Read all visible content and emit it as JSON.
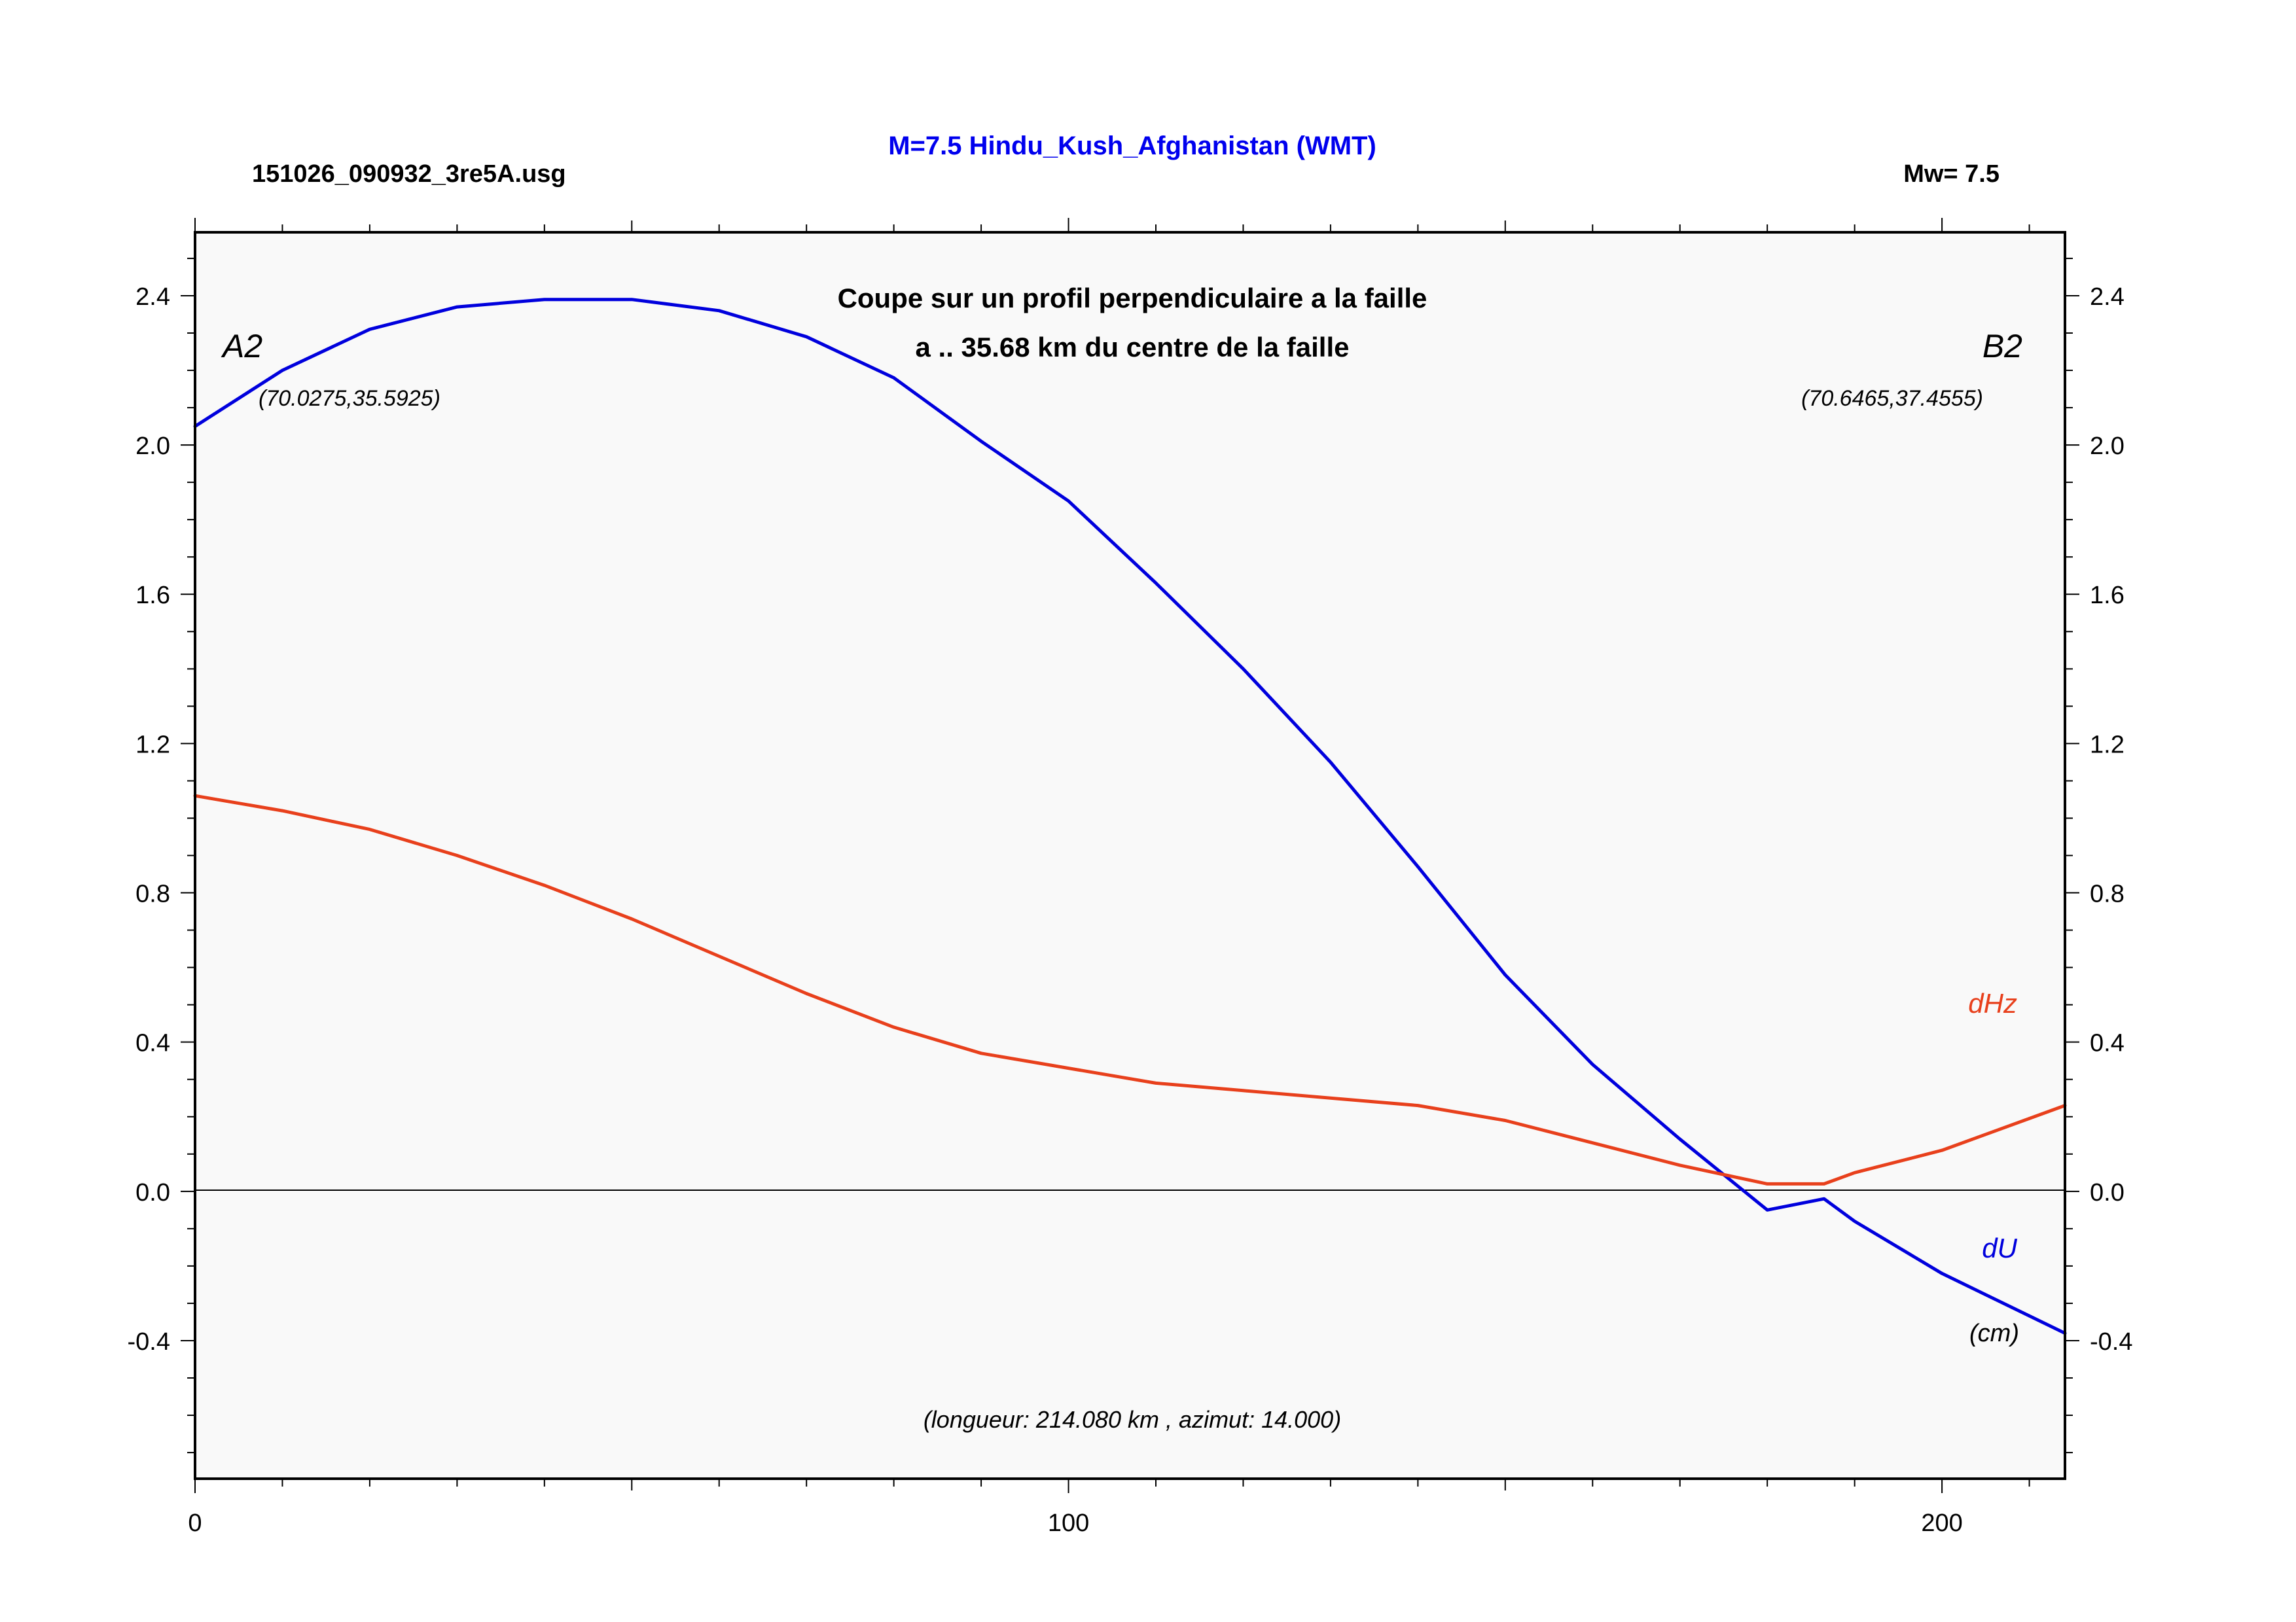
{
  "header": {
    "filename": "151026_090932_3re5A.usg",
    "title": "M=7.5 Hindu_Kush_Afghanistan (WMT)",
    "magnitude": "Mw= 7.5"
  },
  "annotations": {
    "subtitle_line1": "Coupe sur un profil perpendiculaire a la faille",
    "subtitle_line2": "a .. 35.68 km du centre de la faille",
    "point_a_label": "A2",
    "point_a_coords": "(70.0275,35.5925)",
    "point_b_label": "B2",
    "point_b_coords": "(70.6465,37.4555)",
    "profile_info": "(longueur: 214.080 km , azimut: 14.000)",
    "unit": "(cm)"
  },
  "colors": {
    "title": "#0000ee",
    "du": "#0000dd",
    "dhz": "#e8401c",
    "plot_background": "#f9f9f9",
    "frame": "#000000"
  },
  "chart_data": {
    "type": "line",
    "x": [
      0,
      10,
      20,
      30,
      40,
      50,
      60,
      70,
      80,
      90,
      100,
      110,
      120,
      130,
      140,
      150,
      160,
      170,
      180,
      186.5,
      190,
      200,
      214.08
    ],
    "xlim": [
      0,
      214.08
    ],
    "ylim": [
      -0.77,
      2.57
    ],
    "x_ticks": [
      "0",
      "100",
      "200"
    ],
    "y_ticks": [
      "-0.4",
      "0.0",
      "0.4",
      "0.8",
      "1.2",
      "1.6",
      "2.0",
      "2.4"
    ],
    "grid": false,
    "zero_line": true,
    "series": [
      {
        "name": "dU",
        "color": "#0000dd",
        "values": [
          2.05,
          2.2,
          2.31,
          2.37,
          2.39,
          2.39,
          2.36,
          2.29,
          2.18,
          2.01,
          1.85,
          1.63,
          1.4,
          1.15,
          0.87,
          0.58,
          0.34,
          0.14,
          -0.05,
          -0.02,
          -0.08,
          -0.22,
          -0.38
        ]
      },
      {
        "name": "dHz",
        "color": "#e8401c",
        "values": [
          1.06,
          1.02,
          0.97,
          0.9,
          0.82,
          0.73,
          0.63,
          0.53,
          0.44,
          0.37,
          0.33,
          0.29,
          0.27,
          0.25,
          0.23,
          0.19,
          0.13,
          0.07,
          0.02,
          0.02,
          0.05,
          0.11,
          0.23
        ]
      }
    ]
  }
}
